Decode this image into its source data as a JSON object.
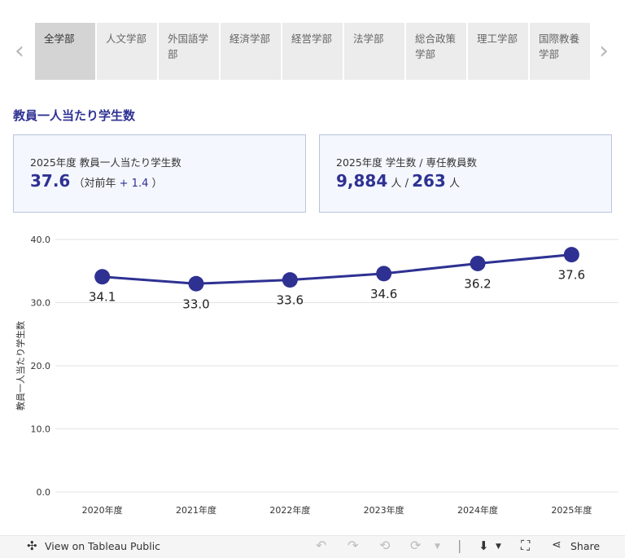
{
  "tabs": {
    "prev_icon": "chevron-left-icon",
    "next_icon": "chevron-right-icon",
    "items": [
      {
        "label": "全学部",
        "active": true
      },
      {
        "label": "人文学部",
        "active": false
      },
      {
        "label": "外国語学部",
        "active": false
      },
      {
        "label": "経済学部",
        "active": false
      },
      {
        "label": "経営学部",
        "active": false
      },
      {
        "label": "法学部",
        "active": false
      },
      {
        "label": "総合政策学部",
        "active": false
      },
      {
        "label": "理工学部",
        "active": false
      },
      {
        "label": "国際教養学部",
        "active": false
      }
    ]
  },
  "section_title": "教員一人当たり学生数",
  "kpi_ratio": {
    "label": "2025年度 教員一人当たり学生数",
    "value": "37.6",
    "paren_open": "（対前年",
    "change": "+ 1.4",
    "paren_close": "）"
  },
  "kpi_counts": {
    "label": "2025年度 学生数 / 専任教員数",
    "students": "9,884",
    "unit1": "人",
    "slash": "/",
    "faculty": "263",
    "unit2": "人"
  },
  "colors": {
    "accent": "#2e3192",
    "kpi_bg": "#f4f7fd",
    "kpi_border": "#b9c4dc"
  },
  "chart_data": {
    "type": "line",
    "categories": [
      "2020年度",
      "2021年度",
      "2022年度",
      "2023年度",
      "2024年度",
      "2025年度"
    ],
    "values": [
      34.1,
      33.0,
      33.6,
      34.6,
      36.2,
      37.6
    ],
    "data_labels": [
      "34.1",
      "33.0",
      "33.6",
      "34.6",
      "36.2",
      "37.6"
    ],
    "ylabel": "教員一人当たり学生数",
    "ylim": [
      0,
      40
    ],
    "yticks": [
      0,
      10,
      20,
      30,
      40
    ],
    "ytick_labels": [
      "0.0",
      "10.0",
      "20.0",
      "30.0",
      "40.0"
    ],
    "grid": true,
    "color": "#2e3192"
  },
  "footer": {
    "view_label": "View on Tableau Public",
    "share_label": "Share",
    "icons": [
      "tableau-logo-icon",
      "undo-icon",
      "redo-icon",
      "revert-icon",
      "refresh-icon",
      "download-icon",
      "fullscreen-icon",
      "share-icon"
    ]
  }
}
